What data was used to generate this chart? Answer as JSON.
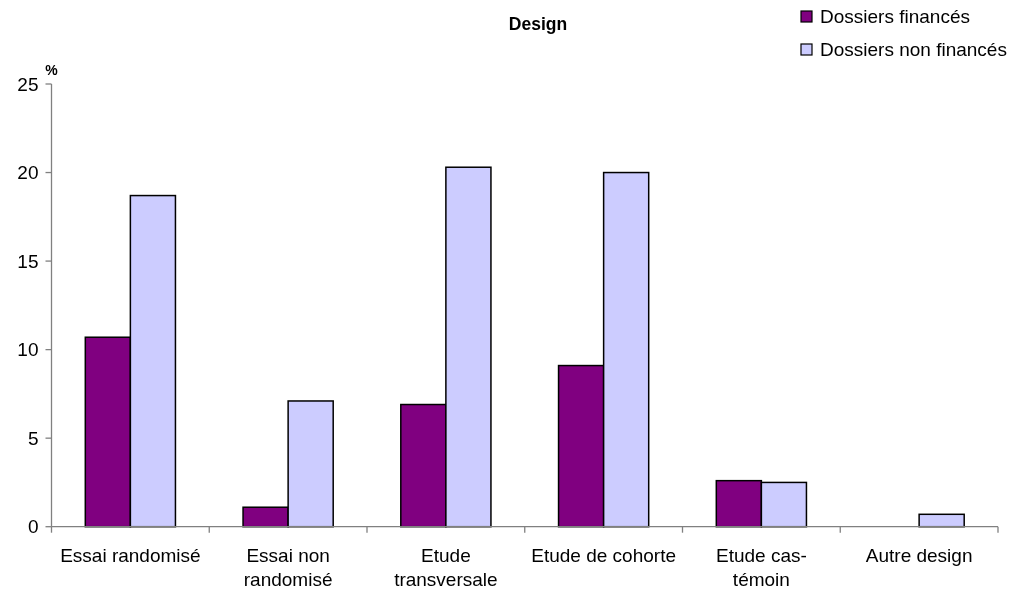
{
  "chart_data": {
    "type": "bar",
    "title": "Design",
    "ylabel": "%",
    "categories": [
      "Essai randomisé",
      "Essai non randomisé",
      "Etude transversale",
      "Etude de cohorte",
      "Etude cas-témoin",
      "Autre design"
    ],
    "series": [
      {
        "name": "Dossiers financés",
        "color": "#800080",
        "values": [
          10.7,
          1.1,
          6.9,
          9.1,
          2.6,
          null
        ]
      },
      {
        "name": "Dossiers non financés",
        "color": "#ccccff",
        "values": [
          18.7,
          7.1,
          20.3,
          20.0,
          2.5,
          0.7
        ]
      }
    ],
    "ylim": [
      0,
      25
    ],
    "yticks": [
      0,
      5,
      10,
      15,
      20,
      25
    ],
    "legend": "top right"
  }
}
